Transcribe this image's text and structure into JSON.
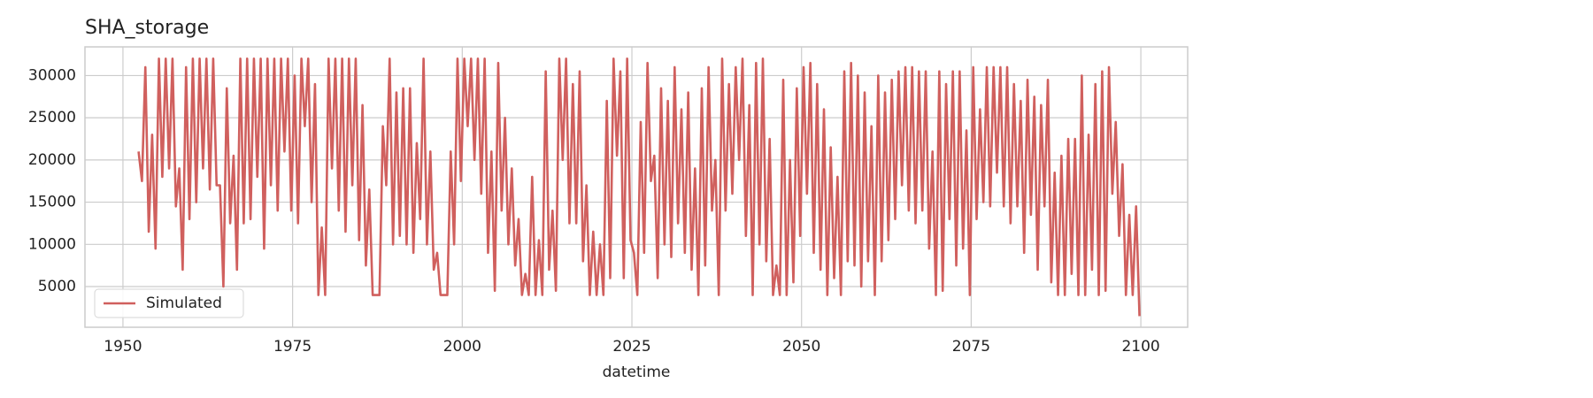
{
  "chart_data": {
    "type": "line",
    "title": "SHA_storage",
    "x_label": "datetime",
    "x": [
      1952.3,
      1952.8,
      1953.3,
      1953.8,
      1954.3,
      1954.8,
      1955.3,
      1955.8,
      1956.3,
      1956.8,
      1957.3,
      1957.8,
      1958.3,
      1958.8,
      1959.3,
      1959.8,
      1960.3,
      1960.8,
      1961.3,
      1961.8,
      1962.3,
      1962.8,
      1963.3,
      1963.8,
      1964.3,
      1964.8,
      1965.3,
      1965.8,
      1966.3,
      1966.8,
      1967.3,
      1967.8,
      1968.3,
      1968.8,
      1969.3,
      1969.8,
      1970.3,
      1970.8,
      1971.3,
      1971.8,
      1972.3,
      1972.8,
      1973.3,
      1973.8,
      1974.3,
      1974.8,
      1975.3,
      1975.8,
      1976.3,
      1976.8,
      1977.3,
      1977.8,
      1978.3,
      1978.8,
      1979.3,
      1979.8,
      1980.3,
      1980.8,
      1981.3,
      1981.8,
      1982.3,
      1982.8,
      1983.3,
      1983.8,
      1984.3,
      1984.8,
      1985.3,
      1985.8,
      1986.3,
      1986.8,
      1987.3,
      1987.8,
      1988.3,
      1988.8,
      1989.3,
      1989.8,
      1990.3,
      1990.8,
      1991.3,
      1991.8,
      1992.3,
      1992.8,
      1993.3,
      1993.8,
      1994.3,
      1994.8,
      1995.3,
      1995.8,
      1996.3,
      1996.8,
      1997.3,
      1997.8,
      1998.3,
      1998.8,
      1999.3,
      1999.8,
      2000.3,
      2000.8,
      2001.3,
      2001.8,
      2002.3,
      2002.8,
      2003.3,
      2003.8,
      2004.3,
      2004.8,
      2005.3,
      2005.8,
      2006.3,
      2006.8,
      2007.3,
      2007.8,
      2008.3,
      2008.8,
      2009.3,
      2009.8,
      2010.3,
      2010.8,
      2011.3,
      2011.8,
      2012.3,
      2012.8,
      2013.3,
      2013.8,
      2014.3,
      2014.8,
      2015.3,
      2015.8,
      2016.3,
      2016.8,
      2017.3,
      2017.8,
      2018.3,
      2018.8,
      2019.3,
      2019.8,
      2020.3,
      2020.8,
      2021.3,
      2021.8,
      2022.3,
      2022.8,
      2023.3,
      2023.8,
      2024.3,
      2024.8,
      2025.3,
      2025.8,
      2026.3,
      2026.8,
      2027.3,
      2027.8,
      2028.3,
      2028.8,
      2029.3,
      2029.8,
      2030.3,
      2030.8,
      2031.3,
      2031.8,
      2032.3,
      2032.8,
      2033.3,
      2033.8,
      2034.3,
      2034.8,
      2035.3,
      2035.8,
      2036.3,
      2036.8,
      2037.3,
      2037.8,
      2038.3,
      2038.8,
      2039.3,
      2039.8,
      2040.3,
      2040.8,
      2041.3,
      2041.8,
      2042.3,
      2042.8,
      2043.3,
      2043.8,
      2044.3,
      2044.8,
      2045.3,
      2045.8,
      2046.3,
      2046.8,
      2047.3,
      2047.8,
      2048.3,
      2048.8,
      2049.3,
      2049.8,
      2050.3,
      2050.8,
      2051.3,
      2051.8,
      2052.3,
      2052.8,
      2053.3,
      2053.8,
      2054.3,
      2054.8,
      2055.3,
      2055.8,
      2056.3,
      2056.8,
      2057.3,
      2057.8,
      2058.3,
      2058.8,
      2059.3,
      2059.8,
      2060.3,
      2060.8,
      2061.3,
      2061.8,
      2062.3,
      2062.8,
      2063.3,
      2063.8,
      2064.3,
      2064.8,
      2065.3,
      2065.8,
      2066.3,
      2066.8,
      2067.3,
      2067.8,
      2068.3,
      2068.8,
      2069.3,
      2069.8,
      2070.3,
      2070.8,
      2071.3,
      2071.8,
      2072.3,
      2072.8,
      2073.3,
      2073.8,
      2074.3,
      2074.8,
      2075.3,
      2075.8,
      2076.3,
      2076.8,
      2077.3,
      2077.8,
      2078.3,
      2078.8,
      2079.3,
      2079.8,
      2080.3,
      2080.8,
      2081.3,
      2081.8,
      2082.3,
      2082.8,
      2083.3,
      2083.8,
      2084.3,
      2084.8,
      2085.3,
      2085.8,
      2086.3,
      2086.8,
      2087.3,
      2087.8,
      2088.3,
      2088.8,
      2089.3,
      2089.8,
      2090.3,
      2090.8,
      2091.3,
      2091.8,
      2092.3,
      2092.8,
      2093.3,
      2093.8,
      2094.3,
      2094.8,
      2095.3,
      2095.8,
      2096.3,
      2096.8,
      2097.3,
      2097.8,
      2098.3,
      2098.8,
      2099.3,
      2099.8
    ],
    "series": [
      {
        "name": "Simulated",
        "color": "#d0605e",
        "values": [
          21000,
          17500,
          31000,
          11500,
          23000,
          9500,
          32000,
          18000,
          32000,
          19000,
          32000,
          14500,
          19000,
          7000,
          31000,
          13000,
          32000,
          15000,
          32000,
          19000,
          32000,
          16500,
          32000,
          17000,
          17000,
          5000,
          28500,
          12500,
          20500,
          7000,
          32000,
          12500,
          32000,
          13000,
          32000,
          18000,
          32000,
          9500,
          32000,
          17000,
          32000,
          14000,
          32000,
          21000,
          32000,
          14000,
          30000,
          12500,
          32000,
          24000,
          32000,
          15000,
          29000,
          4000,
          12000,
          4000,
          32000,
          19000,
          32000,
          14000,
          32000,
          11500,
          32000,
          17000,
          32000,
          10500,
          26500,
          7500,
          16500,
          4000,
          4000,
          4000,
          24000,
          17000,
          32000,
          10000,
          28000,
          11000,
          28500,
          10000,
          28500,
          9000,
          22000,
          13000,
          32000,
          10000,
          21000,
          7000,
          9000,
          4000,
          4000,
          4000,
          21000,
          10000,
          32000,
          17500,
          32000,
          24000,
          32000,
          20000,
          32000,
          16000,
          32000,
          9000,
          21000,
          4500,
          31500,
          14000,
          25000,
          10000,
          19000,
          7500,
          13000,
          4000,
          6500,
          4000,
          18000,
          4000,
          10500,
          4000,
          30500,
          7000,
          14000,
          4500,
          32000,
          20000,
          32000,
          12500,
          29000,
          12500,
          30500,
          8000,
          17000,
          4000,
          11500,
          4000,
          10000,
          4000,
          27000,
          6000,
          32000,
          20500,
          30500,
          6000,
          32000,
          10500,
          9000,
          4000,
          24500,
          9000,
          31500,
          17500,
          20500,
          6000,
          28500,
          10000,
          27000,
          8500,
          31000,
          12500,
          26000,
          9000,
          28000,
          7000,
          19000,
          4000,
          28500,
          7500,
          31000,
          14000,
          20000,
          4000,
          32000,
          14000,
          29000,
          16000,
          31000,
          20000,
          32000,
          11000,
          26500,
          4000,
          31500,
          10000,
          32000,
          8000,
          22500,
          4000,
          7500,
          4000,
          29500,
          4000,
          20000,
          5500,
          28500,
          11000,
          31000,
          16000,
          31500,
          9000,
          29000,
          7000,
          26000,
          4000,
          21500,
          6000,
          18000,
          4000,
          30500,
          8000,
          31500,
          7500,
          30000,
          5000,
          28000,
          8000,
          24000,
          4000,
          30000,
          8000,
          28000,
          10500,
          29500,
          13000,
          30500,
          17000,
          31000,
          14000,
          31000,
          12500,
          30500,
          14000,
          30500,
          9500,
          21000,
          4000,
          30500,
          4500,
          29000,
          13000,
          30500,
          7500,
          30500,
          9500,
          23500,
          4000,
          31000,
          13000,
          26000,
          15000,
          31000,
          14500,
          31000,
          18500,
          31000,
          14500,
          31000,
          12500,
          29000,
          14500,
          27000,
          9000,
          29500,
          13500,
          27500,
          7000,
          26500,
          14500,
          29500,
          5500,
          18500,
          4000,
          20500,
          4000,
          22500,
          6500,
          22500,
          4000,
          30000,
          4000,
          23000,
          7000,
          29000,
          4000,
          30500,
          4500,
          31000,
          16000,
          24500,
          11000,
          19500,
          4000,
          13500,
          4000,
          14500,
          1500
        ]
      }
    ],
    "xlim": [
      1944.4,
      2106.9
    ],
    "ylim": [
      180,
      33400
    ],
    "xticks": [
      1950,
      1975,
      2000,
      2025,
      2050,
      2075,
      2100
    ],
    "yticks": [
      5000,
      10000,
      15000,
      20000,
      25000,
      30000
    ],
    "grid": true,
    "legend": "lower left"
  }
}
